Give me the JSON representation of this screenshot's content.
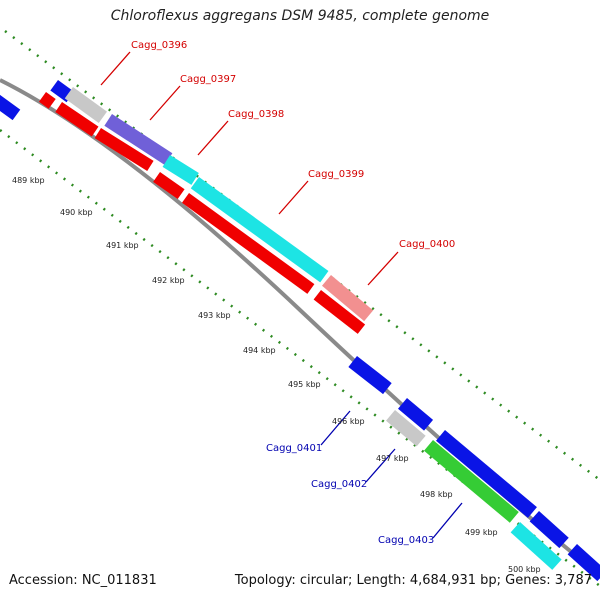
{
  "title": "Chloroflexus aggregans DSM 9485, complete genome",
  "footer": {
    "accession": "Accession: NC_011831",
    "summary": "Topology: circular; Length: 4,684,931 bp; Genes: 3,787"
  },
  "kbp_ticks": [
    "489 kbp",
    "490 kbp",
    "491 kbp",
    "492 kbp",
    "493 kbp",
    "494 kbp",
    "495 kbp",
    "496 kbp",
    "497 kbp",
    "498 kbp",
    "499 kbp",
    "500 kbp"
  ],
  "gene_labels_forward": [
    "Cagg_0396",
    "Cagg_0397",
    "Cagg_0398",
    "Cagg_0399",
    "Cagg_0400"
  ],
  "gene_labels_reverse": [
    "Cagg_0401",
    "Cagg_0402",
    "Cagg_0403"
  ],
  "colors": {
    "forward_label": "#d40000",
    "reverse_label": "#0000b0",
    "backbone": "#8a8a8a",
    "tick": "#2e8b22",
    "blue": "#0a14e6",
    "red": "#f00000",
    "cyan": "#1de4e4",
    "green": "#35cc35",
    "gray": "#c8c8c8",
    "purple": "#7060d8",
    "pink": "#f29090"
  }
}
